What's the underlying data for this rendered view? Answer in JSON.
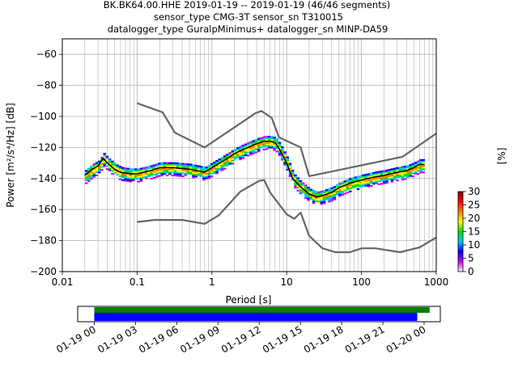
{
  "title_lines": [
    "BK.BK64.00.HHE   2019-01-19 -- 2019-01-19  (46/46 segments)",
    "sensor_type CMG-3T sensor_sn T310015",
    "datalogger_type GuralpMinimus+ datalogger_sn MINP-DA59"
  ],
  "colorbar": {
    "label": "[%]",
    "ticks": [
      "0",
      "5",
      "10",
      "15",
      "20",
      "25",
      "30"
    ],
    "range": [
      0,
      30
    ],
    "colors": [
      "#ffffff",
      "#cc00ff",
      "#0000ff",
      "#00c8ff",
      "#00e000",
      "#ffff00",
      "#ff8000",
      "#ff0000",
      "#800000"
    ]
  },
  "chart_data": [
    {
      "type": "line",
      "title": "BK.BK64.00.HHE   2019-01-19 -- 2019-01-19  (46/46 segments)",
      "xlabel": "Period [s]",
      "ylabel": "Power [m²/s⁴/Hz] [dB]",
      "x_scale": "log",
      "xlim": [
        0.01,
        1000
      ],
      "ylim": [
        -200,
        -50
      ],
      "x_ticks": [
        "0.01",
        "0.1",
        "1",
        "10",
        "100",
        "1000"
      ],
      "y_ticks": [
        "−200",
        "−180",
        "−160",
        "−140",
        "−120",
        "−100",
        "−80",
        "−60"
      ],
      "grid": true,
      "series": [
        {
          "role": "high-noise-model",
          "color": "#666666",
          "x": [
            0.1,
            0.22,
            0.32,
            0.8,
            3.8,
            4.6,
            6.3,
            7.9,
            15.4,
            20,
            354.8,
            1000
          ],
          "y": [
            -91.5,
            -97.4,
            -110.5,
            -120,
            -98,
            -96.5,
            -101,
            -113.5,
            -120,
            -138.5,
            -126,
            -111
          ]
        },
        {
          "role": "low-noise-model",
          "color": "#666666",
          "x": [
            0.1,
            0.17,
            0.4,
            0.8,
            1.24,
            2.4,
            4.3,
            5,
            6,
            10,
            12.6,
            15.4,
            20,
            30,
            45,
            70,
            101,
            154,
            328,
            600,
            1000
          ],
          "y": [
            -168,
            -166.7,
            -166.7,
            -169.2,
            -163.7,
            -148.5,
            -141.5,
            -141,
            -149,
            -163,
            -166,
            -162,
            -177,
            -185,
            -187.5,
            -187.5,
            -185,
            -185,
            -187.5,
            -184.4,
            -178
          ]
        },
        {
          "role": "mode",
          "color": "#000000",
          "x": [
            0.02,
            0.025,
            0.03,
            0.035,
            0.04,
            0.05,
            0.06,
            0.08,
            0.1,
            0.15,
            0.2,
            0.3,
            0.5,
            0.8,
            1,
            1.5,
            2,
            3,
            4,
            5,
            6,
            7,
            8,
            10,
            12,
            15,
            20,
            25,
            30,
            40,
            50,
            70,
            100,
            150,
            200,
            300,
            400,
            500,
            600,
            700
          ],
          "y": [
            -138,
            -134,
            -132,
            -127,
            -130,
            -134,
            -136,
            -137,
            -137,
            -135,
            -133,
            -133,
            -134,
            -136,
            -133,
            -128,
            -124,
            -120,
            -117.5,
            -116,
            -116,
            -117,
            -121,
            -130,
            -140,
            -145,
            -150,
            -152,
            -151,
            -149,
            -146,
            -143,
            -141,
            -139,
            -138,
            -136,
            -135,
            -133,
            -131,
            -131
          ]
        }
      ]
    },
    {
      "type": "timeline",
      "x_ticks": [
        "01-19 00",
        "01-19 03",
        "01-19 06",
        "01-19 09",
        "01-19 12",
        "01-19 15",
        "01-19 18",
        "01-19 21",
        "01-20 00"
      ],
      "series": [
        {
          "role": "data-availability",
          "color": "#008000",
          "start_hour": 0,
          "end_hour": 24.4
        },
        {
          "role": "psd-segments",
          "color": "#0000ff",
          "start_hour": 0,
          "end_hour": 23.5
        }
      ]
    }
  ]
}
